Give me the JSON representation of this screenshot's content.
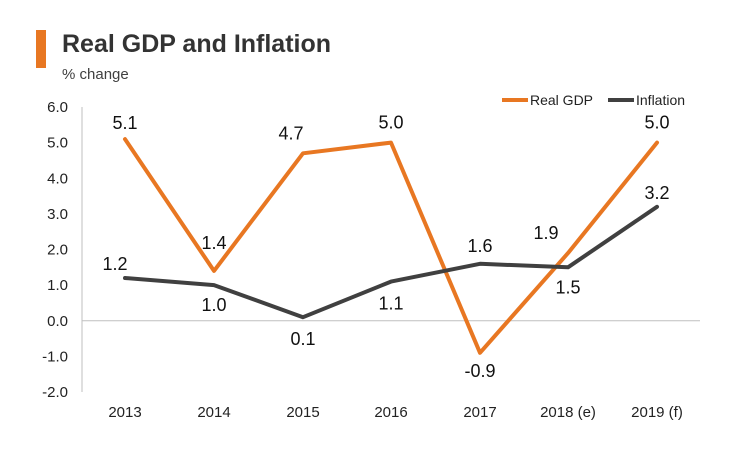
{
  "chart_data": {
    "type": "line",
    "title": "Real GDP and Inflation",
    "subtitle": "% change",
    "xlabel": "",
    "ylabel": "% change",
    "categories": [
      "2013",
      "2014",
      "2015",
      "2016",
      "2017",
      "2018 (e)",
      "2019 (f)"
    ],
    "y_ticks": [
      "6.0",
      "5.0",
      "4.0",
      "3.0",
      "2.0",
      "1.0",
      "0.0",
      "-1.0",
      "-2.0"
    ],
    "ylim": [
      -2,
      6
    ],
    "grid": false,
    "legend_position": "top-right",
    "series": [
      {
        "name": "Real GDP",
        "color": "#E87722",
        "values": [
          5.1,
          1.4,
          4.7,
          5.0,
          -0.9,
          1.9,
          5.0
        ],
        "labels": [
          "5.1",
          "1.4",
          "4.7",
          "5.0",
          "-0.9",
          "1.9",
          "5.0"
        ]
      },
      {
        "name": "Inflation",
        "color": "#404040",
        "values": [
          1.2,
          1.0,
          0.1,
          1.1,
          1.6,
          1.5,
          3.2
        ],
        "labels": [
          "1.2",
          "1.0",
          "0.1",
          "1.1",
          "1.6",
          "1.5",
          "3.2"
        ]
      }
    ]
  },
  "colors": {
    "accent": "#E87722",
    "axis": "#BFBFBF"
  }
}
